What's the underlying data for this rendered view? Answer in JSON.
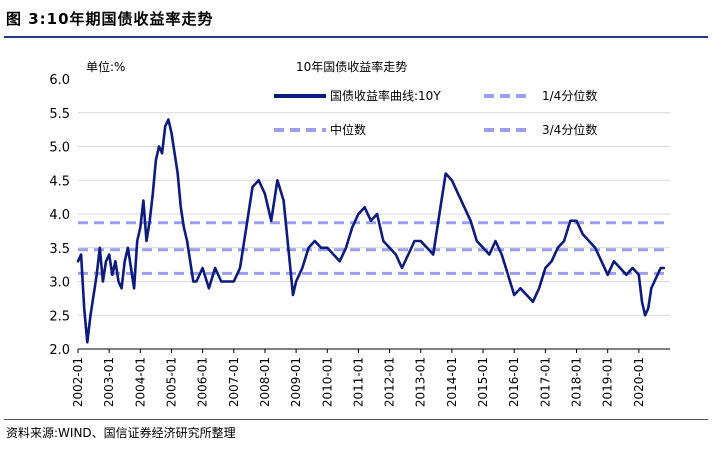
{
  "figure": {
    "title": "图 3:10年期国债收益率走势",
    "source": "资料来源:WIND、国信证券经济研究所整理"
  },
  "chart_data": {
    "type": "line",
    "title": "10年国债收益率走势",
    "unit_label": "单位:%",
    "xlabel": "",
    "ylabel": "",
    "ylim": [
      2.0,
      6.0
    ],
    "yticks": [
      "6.0",
      "5.5",
      "5.0",
      "4.5",
      "4.0",
      "3.5",
      "3.0",
      "2.5",
      "2.0"
    ],
    "x_tick_labels": [
      "2002-01",
      "2003-01",
      "2004-01",
      "2005-01",
      "2006-01",
      "2007-01",
      "2008-01",
      "2009-01",
      "2010-01",
      "2011-01",
      "2012-01",
      "2013-01",
      "2014-01",
      "2015-01",
      "2016-01",
      "2017-01",
      "2018-01",
      "2019-01",
      "2020-01"
    ],
    "grid": "horizontal",
    "legend_position": "top",
    "colors": {
      "series": "#0d1b7a",
      "reference": "#9a9ff0"
    },
    "series": [
      {
        "name": "国债收益率曲线:10Y",
        "style": "solid",
        "x": [
          2002.0,
          2002.1,
          2002.2,
          2002.3,
          2002.4,
          2002.5,
          2002.6,
          2002.7,
          2002.8,
          2002.9,
          2003.0,
          2003.1,
          2003.2,
          2003.3,
          2003.4,
          2003.5,
          2003.6,
          2003.7,
          2003.8,
          2003.9,
          2004.0,
          2004.1,
          2004.2,
          2004.3,
          2004.4,
          2004.5,
          2004.6,
          2004.7,
          2004.8,
          2004.9,
          2005.0,
          2005.1,
          2005.2,
          2005.3,
          2005.4,
          2005.5,
          2005.6,
          2005.7,
          2005.8,
          2005.9,
          2006.0,
          2006.2,
          2006.4,
          2006.6,
          2006.8,
          2007.0,
          2007.2,
          2007.4,
          2007.6,
          2007.8,
          2008.0,
          2008.2,
          2008.4,
          2008.6,
          2008.75,
          2008.9,
          2009.0,
          2009.2,
          2009.4,
          2009.6,
          2009.8,
          2010.0,
          2010.2,
          2010.4,
          2010.6,
          2010.8,
          2011.0,
          2011.2,
          2011.4,
          2011.6,
          2011.8,
          2012.0,
          2012.2,
          2012.4,
          2012.6,
          2012.8,
          2013.0,
          2013.2,
          2013.4,
          2013.6,
          2013.8,
          2014.0,
          2014.2,
          2014.4,
          2014.6,
          2014.8,
          2015.0,
          2015.2,
          2015.4,
          2015.6,
          2015.8,
          2016.0,
          2016.2,
          2016.4,
          2016.6,
          2016.8,
          2017.0,
          2017.2,
          2017.4,
          2017.6,
          2017.8,
          2018.0,
          2018.2,
          2018.4,
          2018.6,
          2018.8,
          2019.0,
          2019.2,
          2019.4,
          2019.6,
          2019.8,
          2020.0,
          2020.1,
          2020.2,
          2020.3,
          2020.4,
          2020.5,
          2020.6,
          2020.7,
          2020.8
        ],
        "values": [
          3.3,
          3.4,
          2.6,
          2.1,
          2.5,
          2.8,
          3.1,
          3.5,
          3.0,
          3.3,
          3.4,
          3.1,
          3.3,
          3.0,
          2.9,
          3.3,
          3.5,
          3.2,
          2.9,
          3.6,
          3.8,
          4.2,
          3.6,
          3.9,
          4.3,
          4.8,
          5.0,
          4.9,
          5.3,
          5.4,
          5.2,
          4.9,
          4.6,
          4.1,
          3.8,
          3.6,
          3.3,
          3.0,
          3.0,
          3.1,
          3.2,
          2.9,
          3.2,
          3.0,
          3.0,
          3.0,
          3.2,
          3.8,
          4.4,
          4.5,
          4.3,
          3.9,
          4.5,
          4.2,
          3.5,
          2.8,
          3.0,
          3.2,
          3.5,
          3.6,
          3.5,
          3.5,
          3.4,
          3.3,
          3.5,
          3.8,
          4.0,
          4.1,
          3.9,
          4.0,
          3.6,
          3.5,
          3.4,
          3.2,
          3.4,
          3.6,
          3.6,
          3.5,
          3.4,
          4.0,
          4.6,
          4.5,
          4.3,
          4.1,
          3.9,
          3.6,
          3.5,
          3.4,
          3.6,
          3.4,
          3.1,
          2.8,
          2.9,
          2.8,
          2.7,
          2.9,
          3.2,
          3.3,
          3.5,
          3.6,
          3.9,
          3.9,
          3.7,
          3.6,
          3.5,
          3.3,
          3.1,
          3.3,
          3.2,
          3.1,
          3.2,
          3.1,
          2.7,
          2.5,
          2.6,
          2.9,
          3.0,
          3.1,
          3.2,
          3.2
        ]
      },
      {
        "name": "1/4分位数",
        "style": "dashed",
        "value": 3.12
      },
      {
        "name": "中位数",
        "style": "dashed",
        "value": 3.47
      },
      {
        "name": "3/4分位数",
        "style": "dashed",
        "value": 3.87
      }
    ]
  }
}
